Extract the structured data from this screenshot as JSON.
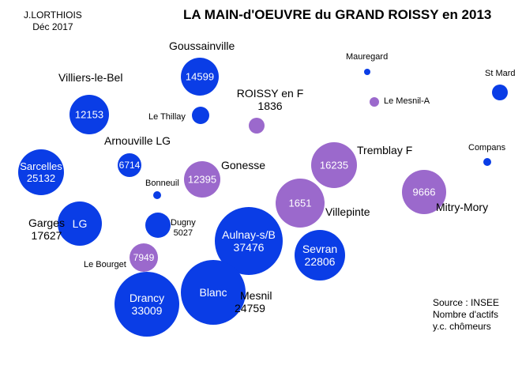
{
  "title": "LA MAIN-d'OEUVRE du GRAND ROISSY en 2013",
  "author": {
    "name": "J.LORTHIOIS",
    "date": "Déc  2017"
  },
  "source": {
    "line1": "Source : INSEE",
    "line2": "Nombre d'actifs",
    "line3": "y.c. chômeurs"
  },
  "colors": {
    "blue": "#0a3de6",
    "purple": "#9b69cc",
    "text_white": "#ffffff"
  },
  "labels": {
    "goussainville": "Goussainville",
    "villiers": "Villiers-le-Bel",
    "thillay": "Le Thillay",
    "arnouville": "Arnouville LG",
    "bonneuil": "Bonneuil",
    "gonesse": "Gonesse",
    "garges_name": "Garges",
    "garges_value": "17627",
    "dugny_name": "Dugny",
    "dugny_value": "5027",
    "bourget": "Le Bourget",
    "mesnil": "Mesnil",
    "blanc_value": "24759",
    "roissy_name": "ROISSY en F",
    "roissy_value": "1836",
    "mauregard": "Mauregard",
    "lemesnila": "Le Mesnil-A",
    "stmard": "St Mard",
    "tremblay": "Tremblay F",
    "compans": "Compans",
    "villepinte": "Villepinte",
    "mitry": "Mitry-Mory"
  },
  "bubbles": [
    {
      "id": "goussainville",
      "value": 14599,
      "color": "blue",
      "inside": [
        "14599"
      ]
    },
    {
      "id": "villiers",
      "value": 12153,
      "color": "blue",
      "inside": [
        "12153"
      ]
    },
    {
      "id": "thillay",
      "value": null,
      "color": "blue",
      "inside": []
    },
    {
      "id": "arnouville",
      "value": 6714,
      "color": "blue",
      "inside": [
        "6714"
      ]
    },
    {
      "id": "sarcelles",
      "value": 25132,
      "color": "blue",
      "inside": [
        "Sarcelles",
        "25132"
      ]
    },
    {
      "id": "bonneuil",
      "value": null,
      "color": "blue",
      "inside": []
    },
    {
      "id": "gonesse",
      "value": 12395,
      "color": "purple",
      "inside": [
        "12395"
      ]
    },
    {
      "id": "garges",
      "value": 17627,
      "color": "blue",
      "inside": [
        "LG"
      ]
    },
    {
      "id": "dugny",
      "value": 5027,
      "color": "blue",
      "inside": []
    },
    {
      "id": "bourget",
      "value": 7949,
      "color": "purple",
      "inside": [
        "7949"
      ]
    },
    {
      "id": "roissy",
      "value": 1836,
      "color": "purple",
      "inside": []
    },
    {
      "id": "aulnay",
      "value": 37476,
      "color": "blue",
      "inside": [
        "Aulnay-s/B",
        "37476"
      ]
    },
    {
      "id": "sevran",
      "value": 22806,
      "color": "blue",
      "inside": [
        "Sevran",
        "22806"
      ]
    },
    {
      "id": "blanc",
      "value": 24759,
      "color": "blue",
      "inside": [
        "Blanc"
      ]
    },
    {
      "id": "drancy",
      "value": 33009,
      "color": "blue",
      "inside": [
        "Drancy",
        "33009"
      ]
    },
    {
      "id": "villepinte",
      "value": 1651,
      "color": "purple",
      "inside": [
        "1651"
      ]
    },
    {
      "id": "tremblay",
      "value": 16235,
      "color": "purple",
      "inside": [
        "16235"
      ]
    },
    {
      "id": "mitry",
      "value": 9666,
      "color": "purple",
      "inside": [
        "9666"
      ]
    },
    {
      "id": "mauregard",
      "value": null,
      "color": "blue",
      "inside": []
    },
    {
      "id": "lemesnila",
      "value": null,
      "color": "purple",
      "inside": []
    },
    {
      "id": "stmard",
      "value": null,
      "color": "blue",
      "inside": []
    },
    {
      "id": "compans",
      "value": null,
      "color": "blue",
      "inside": []
    }
  ]
}
